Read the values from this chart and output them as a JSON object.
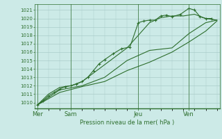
{
  "title": "Pression niveau de la mer( hPa )",
  "bg_color": "#cceae7",
  "line_color": "#2d6e2d",
  "grid_color": "#aaccca",
  "tick_label_color": "#2d6e2d",
  "ylim": [
    1009.3,
    1021.7
  ],
  "yticks": [
    1010,
    1011,
    1012,
    1013,
    1014,
    1015,
    1016,
    1017,
    1018,
    1019,
    1020,
    1021
  ],
  "xtick_labels": [
    "Mer",
    "Sam",
    "Jeu",
    "Ven"
  ],
  "xtick_positions": [
    0,
    24,
    72,
    108
  ],
  "xlim": [
    -2,
    130
  ],
  "series": [
    {
      "x": [
        0,
        4,
        8,
        12,
        16,
        20,
        24,
        28,
        32,
        36,
        40,
        44,
        48,
        54,
        60,
        66,
        72,
        76,
        80,
        84,
        88,
        92,
        96,
        102,
        108,
        112,
        116,
        120,
        124
      ],
      "y": [
        1009.7,
        1010.2,
        1010.8,
        1011.2,
        1011.6,
        1011.9,
        1012.0,
        1012.2,
        1012.5,
        1013.0,
        1013.8,
        1014.6,
        1015.1,
        1015.8,
        1016.4,
        1016.6,
        1019.5,
        1019.7,
        1019.8,
        1019.8,
        1020.3,
        1020.4,
        1020.2,
        1020.5,
        1021.2,
        1021.0,
        1020.2,
        1020.0,
        1020.0
      ],
      "marker": true
    },
    {
      "x": [
        0,
        8,
        16,
        24,
        32,
        40,
        48,
        56,
        64,
        72,
        80,
        88,
        96,
        104,
        112,
        120,
        128
      ],
      "y": [
        1009.7,
        1011.0,
        1011.8,
        1012.0,
        1012.5,
        1013.5,
        1014.5,
        1015.5,
        1016.5,
        1018.0,
        1019.5,
        1020.1,
        1020.3,
        1020.3,
        1020.5,
        1020.0,
        1019.8
      ],
      "marker": false
    },
    {
      "x": [
        0,
        16,
        32,
        48,
        64,
        80,
        96,
        108,
        120,
        128
      ],
      "y": [
        1009.7,
        1011.5,
        1012.0,
        1013.0,
        1015.0,
        1016.2,
        1016.5,
        1018.2,
        1019.5,
        1019.8
      ],
      "marker": false
    },
    {
      "x": [
        0,
        16,
        32,
        48,
        64,
        80,
        96,
        108,
        120,
        128
      ],
      "y": [
        1009.7,
        1011.2,
        1011.9,
        1012.5,
        1013.8,
        1014.8,
        1016.0,
        1017.2,
        1018.5,
        1019.7
      ],
      "marker": false
    }
  ]
}
